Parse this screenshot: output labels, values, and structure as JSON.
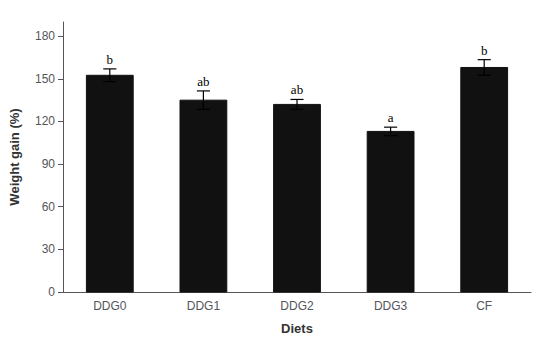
{
  "chart_data": {
    "type": "bar",
    "categories": [
      "DDG0",
      "DDG1",
      "DDG2",
      "DDG3",
      "CF"
    ],
    "values": [
      152.5,
      135.0,
      132.0,
      113.0,
      158.0
    ],
    "errors": [
      4.5,
      6.5,
      3.5,
      3.0,
      5.5
    ],
    "annotations": [
      "b",
      "ab",
      "ab",
      "a",
      "b"
    ],
    "color": "#111111",
    "xlabel": "Diets",
    "ylabel": "Weight gain (%)",
    "ylim": [
      0,
      190
    ],
    "yticks": [
      0,
      30,
      60,
      90,
      120,
      150,
      180
    ],
    "grid": false
  }
}
